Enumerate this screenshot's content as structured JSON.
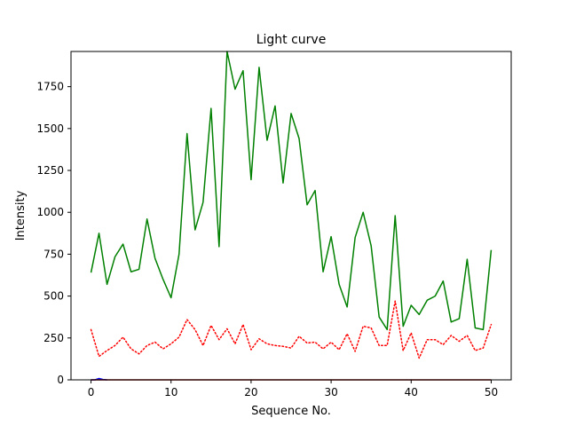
{
  "chart_data": {
    "type": "line",
    "title": "Light curve",
    "xlabel": "Sequence No.",
    "ylabel": "Intensity",
    "xlim": [
      -2.5,
      52.5
    ],
    "ylim": [
      0,
      1960
    ],
    "xticks": [
      0,
      10,
      20,
      30,
      40,
      50
    ],
    "yticks": [
      0,
      250,
      500,
      750,
      1000,
      1250,
      1500,
      1750
    ],
    "grid": false,
    "series": [
      {
        "color": "#008000",
        "style": "solid",
        "x": [
          0,
          1,
          2,
          3,
          4,
          5,
          6,
          7,
          8,
          9,
          10,
          11,
          12,
          13,
          14,
          15,
          16,
          17,
          18,
          19,
          20,
          21,
          22,
          23,
          24,
          25,
          26,
          27,
          28,
          29,
          30,
          31,
          32,
          33,
          34,
          35,
          36,
          37,
          38,
          39,
          40,
          41,
          42,
          43,
          44,
          45,
          46,
          47,
          48,
          49,
          50
        ],
        "values": [
          640,
          875,
          570,
          735,
          810,
          645,
          660,
          960,
          725,
          600,
          490,
          750,
          1470,
          895,
          1060,
          1620,
          795,
          1960,
          1735,
          1845,
          1195,
          1865,
          1430,
          1635,
          1175,
          1590,
          1440,
          1045,
          1130,
          645,
          855,
          570,
          435,
          850,
          1000,
          800,
          375,
          300,
          980,
          320,
          445,
          390,
          475,
          500,
          590,
          345,
          365,
          720,
          310,
          300,
          775
        ]
      },
      {
        "color": "#ff0000",
        "style": "dotted",
        "x": [
          0,
          1,
          2,
          3,
          4,
          5,
          6,
          7,
          8,
          9,
          10,
          11,
          12,
          13,
          14,
          15,
          16,
          17,
          18,
          19,
          20,
          21,
          22,
          23,
          24,
          25,
          26,
          27,
          28,
          29,
          30,
          31,
          32,
          33,
          34,
          35,
          36,
          37,
          38,
          39,
          40,
          41,
          42,
          43,
          44,
          45,
          46,
          47,
          48,
          49,
          50
        ],
        "values": [
          300,
          140,
          175,
          205,
          255,
          185,
          155,
          205,
          225,
          185,
          215,
          255,
          360,
          300,
          205,
          325,
          240,
          305,
          215,
          330,
          180,
          245,
          215,
          205,
          200,
          190,
          260,
          220,
          225,
          185,
          225,
          180,
          275,
          170,
          320,
          310,
          205,
          205,
          470,
          175,
          280,
          130,
          240,
          240,
          210,
          265,
          230,
          265,
          175,
          190,
          330
        ]
      },
      {
        "color": "#0000ff",
        "style": "solid",
        "x": [
          0,
          0.5,
          1,
          1.5,
          2
        ],
        "values": [
          0,
          0,
          8,
          2,
          0
        ]
      },
      {
        "color": "#8b0000",
        "style": "solid",
        "x": [
          0,
          50
        ],
        "values": [
          0,
          0
        ]
      }
    ]
  }
}
